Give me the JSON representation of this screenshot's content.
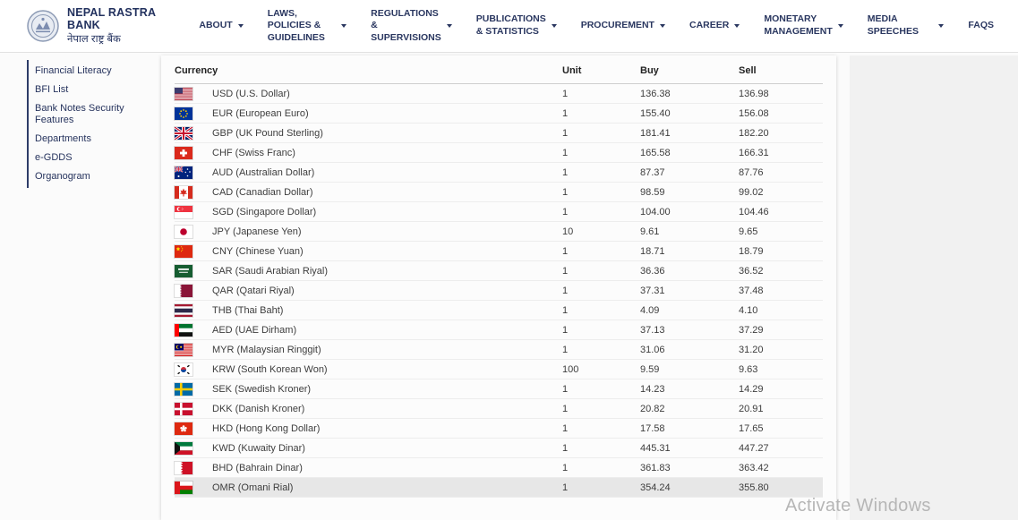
{
  "header": {
    "brand": {
      "name": "NEPAL RASTRA BANK",
      "name_np": "नेपाल राष्ट्र बैंक",
      "logo_icon": "nrb-seal-icon"
    },
    "nav": [
      {
        "id": "about",
        "label": "ABOUT",
        "caret": true
      },
      {
        "id": "laws",
        "label": "LAWS, POLICIES & GUIDELINES",
        "caret": true
      },
      {
        "id": "regulations",
        "label": "REGULATIONS & SUPERVISIONS",
        "caret": true
      },
      {
        "id": "publications",
        "label": "PUBLICATIONS & STATISTICS",
        "caret": true
      },
      {
        "id": "procurement",
        "label": "PROCUREMENT",
        "caret": true
      },
      {
        "id": "career",
        "label": "CAREER",
        "caret": true
      },
      {
        "id": "monetary",
        "label": "MONETARY MANAGEMENT",
        "caret": true
      },
      {
        "id": "media",
        "label": "MEDIA SPEECHES",
        "caret": true
      },
      {
        "id": "faqs",
        "label": "FAQS",
        "caret": false
      }
    ]
  },
  "sidebar": {
    "items": [
      {
        "id": "financial-literacy",
        "label": "Financial Literacy"
      },
      {
        "id": "bfi-list",
        "label": "BFI List"
      },
      {
        "id": "bank-notes-security-features",
        "label": "Bank Notes Security Features"
      },
      {
        "id": "departments",
        "label": "Departments"
      },
      {
        "id": "e-gdds",
        "label": "e-GDDS"
      },
      {
        "id": "organogram",
        "label": "Organogram"
      }
    ]
  },
  "rates_table": {
    "columns": [
      "Currency",
      "Unit",
      "Buy",
      "Sell"
    ],
    "rows": [
      {
        "flag": "us",
        "code": "USD",
        "name": "USD (U.S. Dollar)",
        "unit": "1",
        "buy": "136.38",
        "sell": "136.98",
        "highlight": false
      },
      {
        "flag": "eu",
        "code": "EUR",
        "name": "EUR (European Euro)",
        "unit": "1",
        "buy": "155.40",
        "sell": "156.08",
        "highlight": false
      },
      {
        "flag": "gb",
        "code": "GBP",
        "name": "GBP (UK Pound Sterling)",
        "unit": "1",
        "buy": "181.41",
        "sell": "182.20",
        "highlight": false
      },
      {
        "flag": "ch",
        "code": "CHF",
        "name": "CHF (Swiss Franc)",
        "unit": "1",
        "buy": "165.58",
        "sell": "166.31",
        "highlight": false
      },
      {
        "flag": "au",
        "code": "AUD",
        "name": "AUD (Australian Dollar)",
        "unit": "1",
        "buy": "87.37",
        "sell": "87.76",
        "highlight": false
      },
      {
        "flag": "ca",
        "code": "CAD",
        "name": "CAD (Canadian Dollar)",
        "unit": "1",
        "buy": "98.59",
        "sell": "99.02",
        "highlight": false
      },
      {
        "flag": "sg",
        "code": "SGD",
        "name": "SGD (Singapore Dollar)",
        "unit": "1",
        "buy": "104.00",
        "sell": "104.46",
        "highlight": false
      },
      {
        "flag": "jp",
        "code": "JPY",
        "name": "JPY (Japanese Yen)",
        "unit": "10",
        "buy": "9.61",
        "sell": "9.65",
        "highlight": false
      },
      {
        "flag": "cn",
        "code": "CNY",
        "name": "CNY (Chinese Yuan)",
        "unit": "1",
        "buy": "18.71",
        "sell": "18.79",
        "highlight": false
      },
      {
        "flag": "sa",
        "code": "SAR",
        "name": "SAR (Saudi Arabian Riyal)",
        "unit": "1",
        "buy": "36.36",
        "sell": "36.52",
        "highlight": false
      },
      {
        "flag": "qa",
        "code": "QAR",
        "name": "QAR (Qatari Riyal)",
        "unit": "1",
        "buy": "37.31",
        "sell": "37.48",
        "highlight": false
      },
      {
        "flag": "th",
        "code": "THB",
        "name": "THB (Thai Baht)",
        "unit": "1",
        "buy": "4.09",
        "sell": "4.10",
        "highlight": false
      },
      {
        "flag": "ae",
        "code": "AED",
        "name": "AED (UAE Dirham)",
        "unit": "1",
        "buy": "37.13",
        "sell": "37.29",
        "highlight": false
      },
      {
        "flag": "my",
        "code": "MYR",
        "name": "MYR (Malaysian Ringgit)",
        "unit": "1",
        "buy": "31.06",
        "sell": "31.20",
        "highlight": false
      },
      {
        "flag": "kr",
        "code": "KRW",
        "name": "KRW (South Korean Won)",
        "unit": "100",
        "buy": "9.59",
        "sell": "9.63",
        "highlight": false
      },
      {
        "flag": "se",
        "code": "SEK",
        "name": "SEK (Swedish Kroner)",
        "unit": "1",
        "buy": "14.23",
        "sell": "14.29",
        "highlight": false
      },
      {
        "flag": "dk",
        "code": "DKK",
        "name": "DKK (Danish Kroner)",
        "unit": "1",
        "buy": "20.82",
        "sell": "20.91",
        "highlight": false
      },
      {
        "flag": "hk",
        "code": "HKD",
        "name": "HKD (Hong Kong Dollar)",
        "unit": "1",
        "buy": "17.58",
        "sell": "17.65",
        "highlight": false
      },
      {
        "flag": "kw",
        "code": "KWD",
        "name": "KWD (Kuwaity Dinar)",
        "unit": "1",
        "buy": "445.31",
        "sell": "447.27",
        "highlight": false
      },
      {
        "flag": "bh",
        "code": "BHD",
        "name": "BHD (Bahrain Dinar)",
        "unit": "1",
        "buy": "361.83",
        "sell": "363.42",
        "highlight": false
      },
      {
        "flag": "om",
        "code": "OMR",
        "name": "OMR (Omani Rial)",
        "unit": "1",
        "buy": "354.24",
        "sell": "355.80",
        "highlight": true
      }
    ]
  },
  "watermark": "Activate Windows",
  "colors": {
    "brand_navy": "#22315e",
    "nav_text": "#2a3760",
    "table_text": "#3d3d3d",
    "row_highlight": "#e7e7e7",
    "page_gray": "#f1f1f1"
  }
}
